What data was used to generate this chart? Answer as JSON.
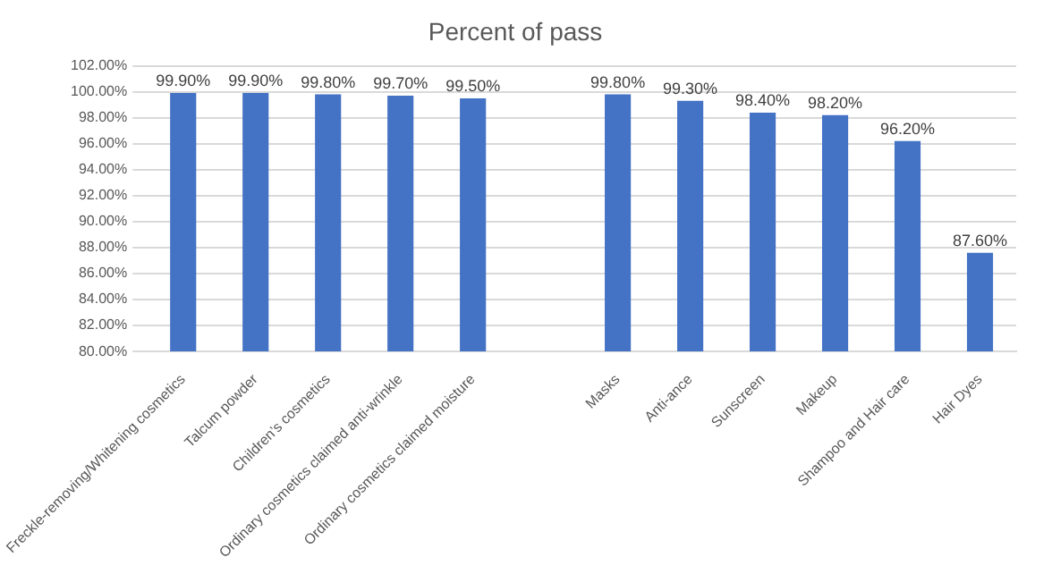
{
  "chart_data": {
    "type": "bar",
    "title": "Percent of pass",
    "categories": [
      "Freckle-removing/Whitening cosmetics",
      "Talcum powder",
      "Children’s cosmetics",
      "Ordinary cosmetics claimed anti-wrinkle",
      "Ordinary cosmetics claimed moisture",
      null,
      "Masks",
      "Anti-ance",
      "Sunscreen",
      "Makeup",
      "Shampoo and Hair care",
      "Hair Dyes"
    ],
    "values": [
      99.9,
      99.9,
      99.8,
      99.7,
      99.5,
      null,
      99.8,
      99.3,
      98.4,
      98.2,
      96.2,
      87.6
    ],
    "value_labels": [
      "99.90%",
      "99.90%",
      "99.80%",
      "99.70%",
      "99.50%",
      null,
      "99.80%",
      "99.30%",
      "98.40%",
      "98.20%",
      "96.20%",
      "87.60%"
    ],
    "color": "#4472c4",
    "ylim": [
      80,
      102
    ],
    "yticks": [
      {
        "value": 80,
        "label": "80.00%"
      },
      {
        "value": 82,
        "label": "82.00%"
      },
      {
        "value": 84,
        "label": "84.00%"
      },
      {
        "value": 86,
        "label": "86.00%"
      },
      {
        "value": 88,
        "label": "88.00%"
      },
      {
        "value": 90,
        "label": "90.00%"
      },
      {
        "value": 92,
        "label": "92.00%"
      },
      {
        "value": 94,
        "label": "94.00%"
      },
      {
        "value": 96,
        "label": "96.00%"
      },
      {
        "value": 98,
        "label": "98.00%"
      },
      {
        "value": 100,
        "label": "100.00%"
      },
      {
        "value": 102,
        "label": "102.00%"
      }
    ],
    "grid": "y"
  }
}
